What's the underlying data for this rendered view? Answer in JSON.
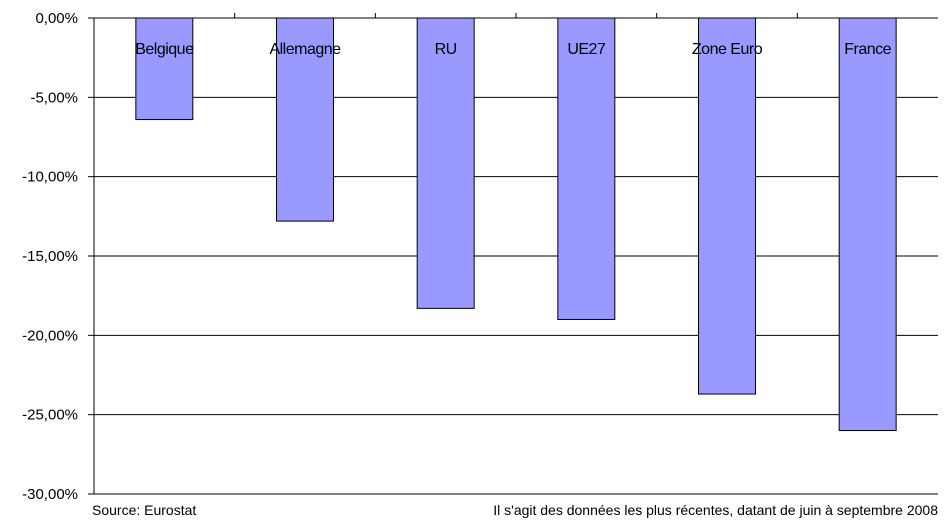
{
  "chart_data": {
    "type": "bar",
    "categories": [
      "Belgique",
      "Allemagne",
      "RU",
      "UE27",
      "Zone Euro",
      "France"
    ],
    "values": [
      -6.4,
      -12.8,
      -18.3,
      -19.0,
      -23.7,
      -26.0
    ],
    "yticks": [
      0,
      -5,
      -10,
      -15,
      -20,
      -25,
      -30
    ],
    "ytick_labels": [
      "0,00%",
      "-5,00%",
      "-10,00%",
      "-15,00%",
      "-20,00%",
      "-25,00%",
      "-30,00%"
    ],
    "ylim": [
      -30,
      0
    ],
    "grid": true,
    "title": "",
    "xlabel": "",
    "ylabel": ""
  },
  "footer": {
    "source": "Source: Eurostat",
    "note": "Il s'agit des données les plus récentes, datant de juin à septembre 2008"
  },
  "colors": {
    "bar_fill": "#9999ff",
    "bar_stroke": "#000000",
    "grid": "#000000",
    "axis": "#000000",
    "text": "#000000"
  }
}
